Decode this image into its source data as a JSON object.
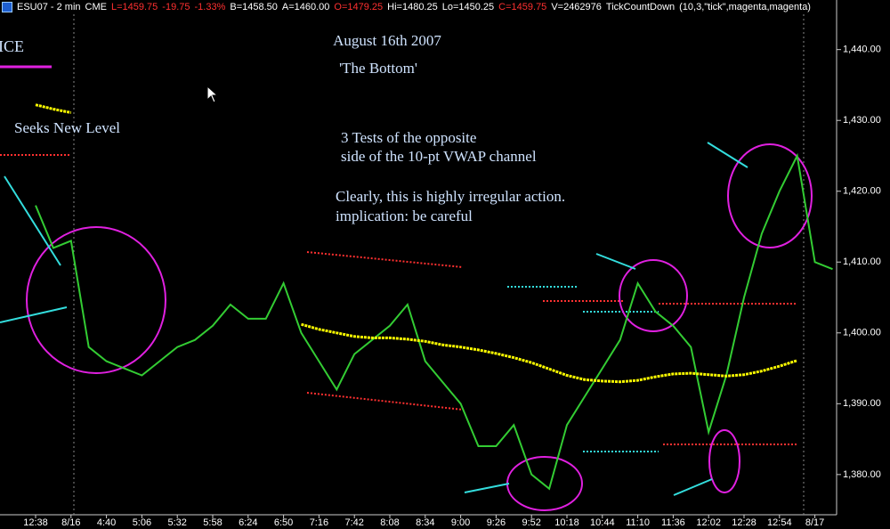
{
  "chart_data": {
    "type": "line",
    "header": [
      {
        "text": "ESU07 - 2 min",
        "color": "#ffffff"
      },
      {
        "text": "CME",
        "color": "#ffffff"
      },
      {
        "text": "L=1459.75",
        "color": "#ff3030"
      },
      {
        "text": "-19.75",
        "color": "#ff3030"
      },
      {
        "text": "-1.33%",
        "color": "#ff3030"
      },
      {
        "text": "B=1458.50",
        "color": "#ffffff"
      },
      {
        "text": "A=1460.00",
        "color": "#ffffff"
      },
      {
        "text": "O=1479.25",
        "color": "#ff3030"
      },
      {
        "text": "Hi=1480.25",
        "color": "#ffffff"
      },
      {
        "text": "Lo=1450.25",
        "color": "#ffffff"
      },
      {
        "text": "C=1459.75",
        "color": "#ff3030"
      },
      {
        "text": "V=2462976",
        "color": "#ffffff"
      },
      {
        "text": "TickCountDown",
        "color": "#ffffff"
      },
      {
        "text": "(10,3,\"tick\",magenta,magenta)",
        "color": "#ffffff"
      }
    ],
    "title": "August 16th 2007",
    "subtitle": "'The Bottom'",
    "legend_fragment": "ICE",
    "annotations": [
      "Seeks New Level",
      "3 Tests of the opposite",
      "side of the 10-pt VWAP channel",
      "Clearly, this is highly irregular action.",
      "implication:  be careful"
    ],
    "categories": [
      "12:38",
      null,
      "8/16",
      null,
      "4:40",
      null,
      "5:06",
      null,
      "5:32",
      null,
      "5:58",
      null,
      "6:24",
      null,
      "6:50",
      null,
      "7:16",
      null,
      "7:42",
      null,
      "8:08",
      null,
      "8:34",
      null,
      "9:00",
      null,
      "9:26",
      null,
      "9:52",
      null,
      "10:18",
      null,
      "10:44",
      null,
      "11:10",
      null,
      "11:36",
      null,
      "12:02",
      null,
      "12:28",
      null,
      "12:54",
      null,
      "8/17",
      null
    ],
    "series": [
      {
        "name": "ESU07",
        "color": "#33cc33",
        "values": [
          1418,
          1412,
          1413,
          1398,
          1396,
          1395,
          1394,
          1396,
          1398,
          1399,
          1401,
          1404,
          1402,
          1402,
          1407,
          1400,
          1396,
          1392,
          1397,
          1399,
          1401,
          1404,
          1396,
          1393,
          1390,
          1384,
          1384,
          1387,
          1380,
          1378,
          1387,
          1391,
          1395,
          1399,
          1407,
          1403,
          1401,
          1398,
          1386,
          1394,
          1405,
          1414,
          1420,
          1425,
          1410,
          1409
        ]
      },
      {
        "name": "VWAP",
        "color": "#ffff00",
        "values": [
          1432.2,
          1431.6,
          1431.1,
          null,
          null,
          null,
          null,
          null,
          null,
          null,
          null,
          null,
          null,
          null,
          null,
          1401.2,
          1400.5,
          1400,
          1399.5,
          1399.3,
          1399.3,
          1399.1,
          1398.8,
          1398.3,
          1398,
          1397.6,
          1397.1,
          1396.5,
          1395.8,
          1394.9,
          1394,
          1393.4,
          1393.2,
          1393.1,
          1393.3,
          1393.8,
          1394.2,
          1394.3,
          1394.1,
          1393.9,
          1394.1,
          1394.6,
          1395.3,
          1396.1,
          null,
          null
        ]
      }
    ],
    "ylim": [
      1374.7,
      1447.0
    ],
    "yticks": [
      {
        "value": 1380,
        "label": "1,380.00"
      },
      {
        "value": 1390,
        "label": "1,390.00"
      },
      {
        "value": 1400,
        "label": "1,400.00"
      },
      {
        "value": 1410,
        "label": "1,410.00"
      },
      {
        "value": 1420,
        "label": "1,420.00"
      },
      {
        "value": 1430,
        "label": "1,430.00"
      },
      {
        "value": 1440,
        "label": "1,440.00"
      }
    ],
    "grid": false
  }
}
